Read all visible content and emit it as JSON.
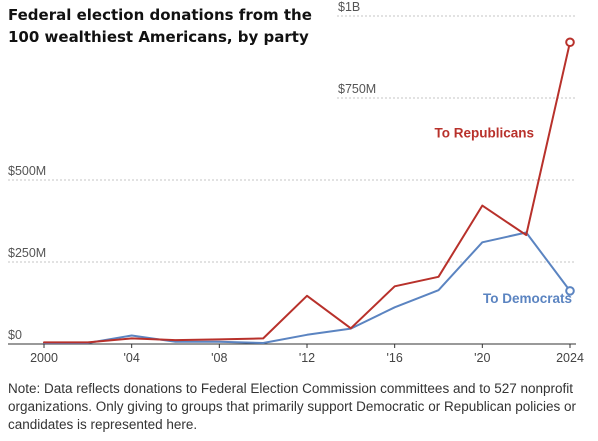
{
  "chart_data": {
    "type": "line",
    "title": "Federal election donations from the 100 wealthiest Americans, by party",
    "x": [
      2000,
      2002,
      2004,
      2006,
      2008,
      2010,
      2012,
      2014,
      2016,
      2018,
      2020,
      2022,
      2024
    ],
    "x_ticks": [
      2000,
      2004,
      2008,
      2012,
      2016,
      2020,
      2024
    ],
    "x_tick_labels": [
      "2000",
      "'04",
      "'08",
      "'12",
      "'16",
      "'20",
      "2024"
    ],
    "y_ticks": [
      0,
      250,
      500,
      750,
      1000
    ],
    "y_tick_labels": [
      "$0",
      "$250M",
      "$500M",
      "$750M",
      "$1B"
    ],
    "ylim": [
      0,
      1000
    ],
    "unit": "$M",
    "grid": true,
    "series": [
      {
        "name": "To Republicans",
        "color": "#b8312b",
        "values": [
          5,
          5,
          17,
          12,
          14,
          17,
          147,
          48,
          176,
          205,
          422,
          332,
          920
        ]
      },
      {
        "name": "To Democrats",
        "color": "#5b84c1",
        "values": [
          3,
          3,
          26,
          7,
          7,
          3,
          28,
          47,
          112,
          164,
          310,
          340,
          162
        ]
      }
    ]
  },
  "note": "Note: Data reflects donations to Federal Election Commission committees and to 527 nonprofit organizations. Only giving to groups that primarily support Democratic or Republican policies or candidates is represented here."
}
